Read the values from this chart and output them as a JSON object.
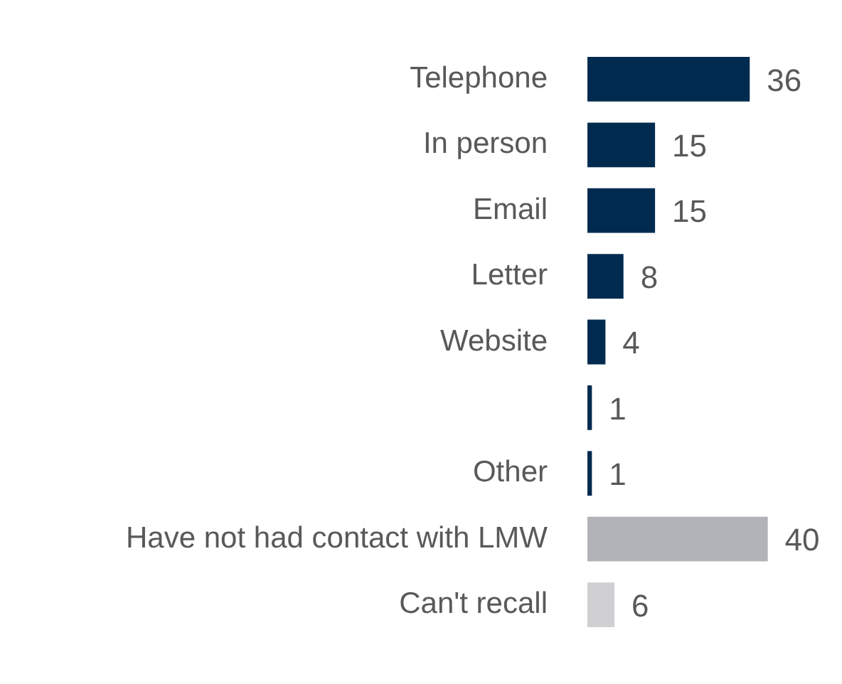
{
  "chart_data": {
    "type": "bar",
    "orientation": "horizontal",
    "categories": [
      "Telephone",
      "In person",
      "Email",
      "Letter",
      "Website",
      null,
      "Other",
      "Have not had contact with LMW",
      "Can't recall"
    ],
    "values": [
      36,
      15,
      15,
      8,
      4,
      1,
      1,
      40,
      6
    ],
    "colors": [
      "#002b4f",
      "#002b4f",
      "#002b4f",
      "#002b4f",
      "#002b4f",
      "#002b4f",
      "#002b4f",
      "#b1b3b8",
      "#d0cfd1"
    ],
    "data_labels": true,
    "legend": false
  }
}
